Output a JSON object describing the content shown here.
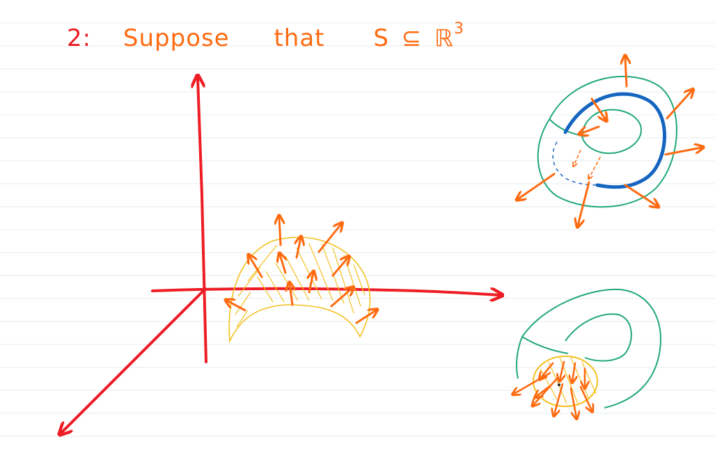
{
  "note": {
    "problem_number": "2:",
    "words": [
      "Suppose",
      "that"
    ],
    "set_name": "S",
    "subset_symbol": "⊆",
    "space_symbol": "ℝ",
    "exponent": "3"
  },
  "colors": {
    "rule_line": "#e6ecf2",
    "axes": "#ee1c24",
    "heading_text": "#ff6a10",
    "normal_vectors": "#ff6a10",
    "surface_patch": "#f4c020",
    "torus_outline": "#20a77a",
    "boundary_curve": "#1565c0"
  },
  "icons": [
    "axes-3d-icon",
    "surface-patch-icon",
    "normal-vector-arrow-icon",
    "torus-icon"
  ]
}
